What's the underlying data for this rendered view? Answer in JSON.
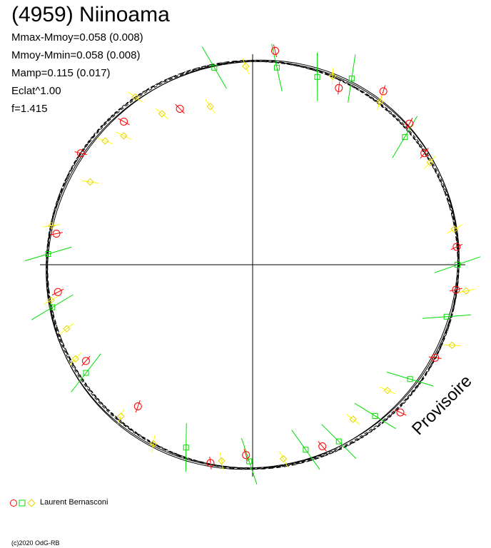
{
  "header": {
    "title": "(4959) Niinoama",
    "params": [
      "Mmax-Mmoy=0.058 (0.008)",
      "Mmoy-Mmin=0.058 (0.008)",
      "Mamp=0.115 (0.017)",
      "Eclat^1.00",
      "f=1.415"
    ]
  },
  "watermark": "Provisoire",
  "observer": {
    "name": "Laurent Bernasconi",
    "markers": [
      "circle",
      "square",
      "diamond"
    ]
  },
  "copyright": "(c)2020 OdG-RB",
  "colors": {
    "circle": "#ff0000",
    "square": "#00dd00",
    "diamond": "#ffff00",
    "curve": "#000000"
  },
  "chart_data": {
    "type": "scatter",
    "projection": "polar",
    "title": "(4959) Niinoama",
    "mean_radius": 1.0,
    "amplitude_ratio": 0.058,
    "series": [
      {
        "name": "circle",
        "marker": "circle",
        "color": "#ff0000",
        "points": [
          {
            "angle": 84,
            "r": 1.05
          },
          {
            "angle": 53,
            "r": 1.06
          },
          {
            "angle": 42,
            "r": 1.03
          },
          {
            "angle": 33,
            "r": 1.0
          },
          {
            "angle": 5,
            "r": 1.0
          },
          {
            "angle": -7,
            "r": 1.0
          },
          {
            "angle": -27,
            "r": 1.0
          },
          {
            "angle": -45,
            "r": 1.02
          },
          {
            "angle": -92,
            "r": 0.93
          },
          {
            "angle": -102,
            "r": 0.99
          },
          {
            "angle": -129,
            "r": 0.89
          },
          {
            "angle": -150,
            "r": 0.94
          },
          {
            "angle": -172,
            "r": 0.96
          },
          {
            "angle": 171,
            "r": 0.97
          },
          {
            "angle": 147,
            "r": 1.0
          },
          {
            "angle": 132,
            "r": 0.94
          },
          {
            "angle": 115,
            "r": 0.84
          },
          {
            "angle": 64,
            "r": 0.96
          },
          {
            "angle": -69,
            "r": 0.95
          }
        ]
      },
      {
        "name": "square",
        "marker": "square",
        "color": "#00dd00",
        "points": [
          {
            "angle": 101,
            "r": 0.98
          },
          {
            "angle": 83,
            "r": 0.97
          },
          {
            "angle": 71,
            "r": 0.97
          },
          {
            "angle": 62,
            "r": 1.03
          },
          {
            "angle": 40,
            "r": 0.97
          },
          {
            "angle": 0,
            "r": 1.0
          },
          {
            "angle": -15,
            "r": 0.98
          },
          {
            "angle": -36,
            "r": 0.95
          },
          {
            "angle": -51,
            "r": 0.95
          },
          {
            "angle": -64,
            "r": 0.96
          },
          {
            "angle": -74,
            "r": 0.94
          },
          {
            "angle": -91,
            "r": 0.96
          },
          {
            "angle": -110,
            "r": 0.95
          },
          {
            "angle": -147,
            "r": 0.97
          },
          {
            "angle": -168,
            "r": 1.0
          },
          {
            "angle": 177,
            "r": 1.0
          }
        ]
      },
      {
        "name": "diamond",
        "marker": "diamond",
        "color": "#ffff00",
        "points": [
          {
            "angle": 92,
            "r": 0.97
          },
          {
            "angle": 67,
            "r": 1.0
          },
          {
            "angle": 52,
            "r": 1.01
          },
          {
            "angle": 30,
            "r": 1.0
          },
          {
            "angle": 10,
            "r": 1.0
          },
          {
            "angle": -7,
            "r": 1.05
          },
          {
            "angle": -22,
            "r": 1.05
          },
          {
            "angle": -43,
            "r": 0.9
          },
          {
            "angle": -57,
            "r": 0.9
          },
          {
            "angle": -81,
            "r": 0.96
          },
          {
            "angle": -99,
            "r": 0.97
          },
          {
            "angle": -131,
            "r": 0.98
          },
          {
            "angle": -152,
            "r": 0.98
          },
          {
            "angle": -170,
            "r": 1.0
          },
          {
            "angle": 169,
            "r": 1.0
          },
          {
            "angle": 153,
            "r": 0.89
          },
          {
            "angle": 121,
            "r": 0.86
          },
          {
            "angle": 105,
            "r": 0.8
          },
          {
            "angle": 140,
            "r": 0.94
          },
          {
            "angle": -119,
            "r": 1.0
          },
          {
            "angle": -161,
            "r": 0.96
          },
          {
            "angle": 135,
            "r": 0.89
          },
          {
            "angle": 125,
            "r": 1.0
          }
        ]
      }
    ]
  }
}
